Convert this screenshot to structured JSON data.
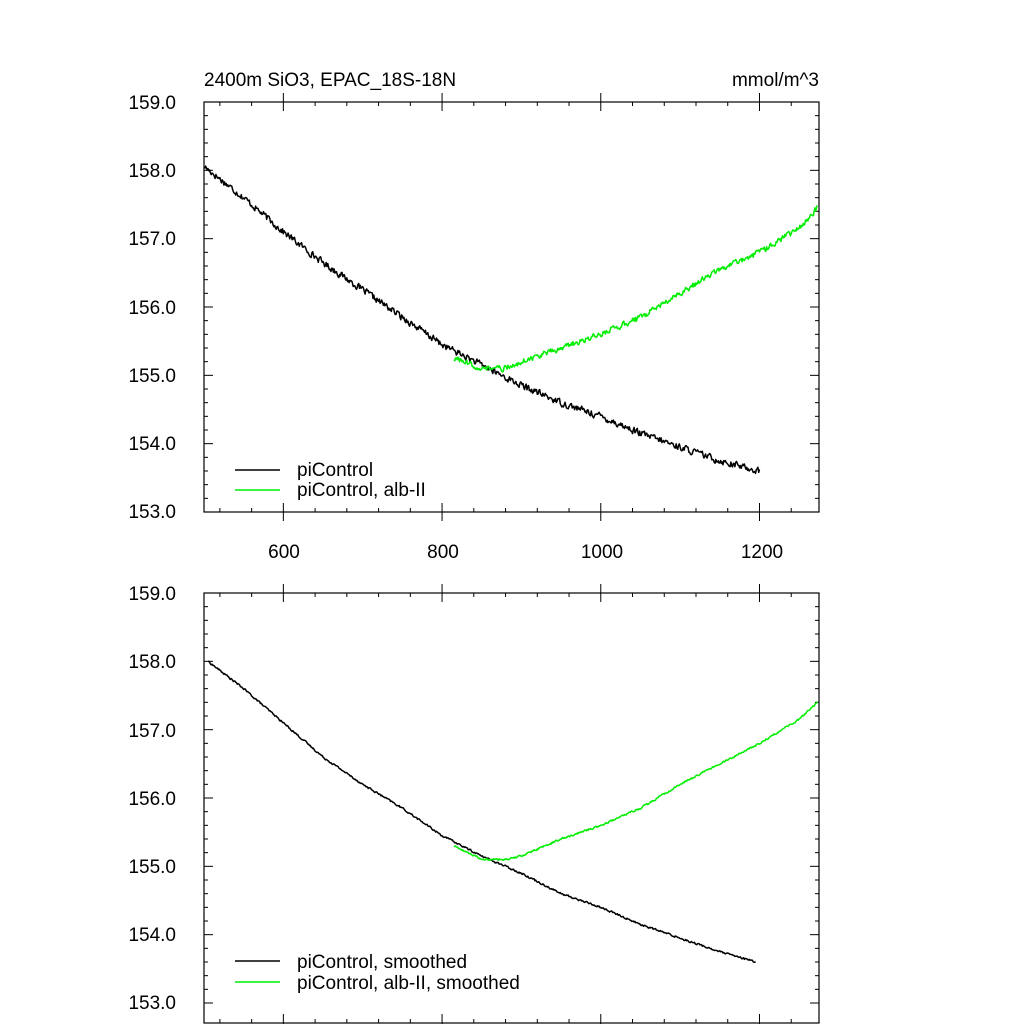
{
  "chart_data": [
    {
      "type": "line",
      "title": "2400m SiO3, EPAC_18S-18N",
      "units": "mmol/m^3",
      "xlim": [
        500,
        1275
      ],
      "ylim": [
        153.0,
        159.0
      ],
      "xticks": [
        600,
        800,
        1000,
        1200
      ],
      "xtick_labels": [
        "600",
        "800",
        "1000",
        "1200"
      ],
      "yticks": [
        153,
        154,
        155,
        156,
        157,
        158,
        159
      ],
      "ytick_labels": [
        "153.0",
        "154.0",
        "155.0",
        "156.0",
        "157.0",
        "158.0",
        "159.0"
      ],
      "legend_position": "bottom-left",
      "series": [
        {
          "name": "piControl",
          "color": "#000000",
          "noise": 0.07,
          "x": [
            501,
            550,
            600,
            650,
            700,
            750,
            800,
            850,
            900,
            950,
            1000,
            1050,
            1100,
            1150,
            1200
          ],
          "values": [
            158.05,
            157.6,
            157.1,
            156.65,
            156.25,
            155.85,
            155.45,
            155.15,
            154.85,
            154.6,
            154.4,
            154.15,
            153.95,
            153.75,
            153.6
          ]
        },
        {
          "name": "piControl, alb-II",
          "color": "#00ee00",
          "noise": 0.06,
          "x": [
            815,
            850,
            880,
            900,
            950,
            1000,
            1050,
            1100,
            1150,
            1200,
            1250,
            1273
          ],
          "values": [
            155.25,
            155.1,
            155.1,
            155.2,
            155.4,
            155.6,
            155.85,
            156.2,
            156.55,
            156.8,
            157.15,
            157.45
          ]
        }
      ]
    },
    {
      "type": "line",
      "title": "",
      "xlim": [
        500,
        1275
      ],
      "ylim": [
        153.0,
        159.0
      ],
      "xticks": [
        600,
        800,
        1000,
        1200
      ],
      "yticks": [
        153,
        154,
        155,
        156,
        157,
        158,
        159
      ],
      "ytick_labels": [
        "153.0",
        "154.0",
        "155.0",
        "156.0",
        "157.0",
        "158.0",
        "159.0"
      ],
      "legend_position": "bottom-left",
      "series": [
        {
          "name": "piControl, smoothed",
          "color": "#000000",
          "noise": 0.02,
          "x": [
            505,
            550,
            600,
            650,
            700,
            750,
            800,
            850,
            900,
            950,
            1000,
            1050,
            1100,
            1150,
            1195
          ],
          "values": [
            158.0,
            157.6,
            157.1,
            156.6,
            156.2,
            155.85,
            155.45,
            155.15,
            154.9,
            154.6,
            154.4,
            154.15,
            153.95,
            153.75,
            153.6
          ]
        },
        {
          "name": "piControl, alb-II, smoothed",
          "color": "#00ee00",
          "noise": 0.02,
          "x": [
            815,
            850,
            880,
            900,
            950,
            1000,
            1050,
            1100,
            1150,
            1200,
            1250,
            1273
          ],
          "values": [
            155.3,
            155.1,
            155.1,
            155.15,
            155.4,
            155.6,
            155.85,
            156.2,
            156.5,
            156.8,
            157.15,
            157.4
          ]
        }
      ]
    }
  ]
}
